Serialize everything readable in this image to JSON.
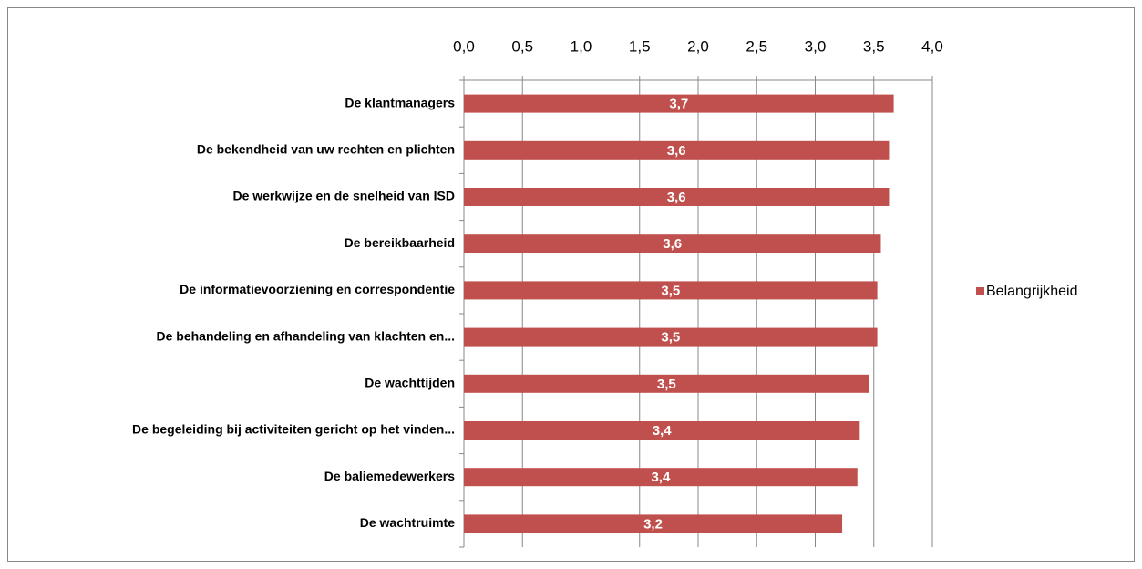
{
  "chart_data": {
    "type": "bar",
    "orientation": "horizontal",
    "categories": [
      "De klantmanagers",
      "De bekendheid van uw rechten en plichten",
      "De werkwijze en de snelheid van ISD",
      "De bereikbaarheid",
      "De informatievoorziening en correspondentie",
      "De behandeling en afhandeling van klachten en...",
      "De wachttijden",
      "De begeleiding bij activiteiten gericht op het vinden...",
      "De baliemedewerkers",
      "De wachtruimte"
    ],
    "series": [
      {
        "name": "Belangrijkheid",
        "color": "#c0504d",
        "values": [
          3.67,
          3.63,
          3.63,
          3.56,
          3.53,
          3.53,
          3.46,
          3.38,
          3.36,
          3.23
        ],
        "value_labels": [
          "3,7",
          "3,6",
          "3,6",
          "3,6",
          "3,5",
          "3,5",
          "3,5",
          "3,4",
          "3,4",
          "3,2"
        ]
      }
    ],
    "xlim": [
      0,
      4
    ],
    "xticks": [
      {
        "value": 0,
        "label": "0,0"
      },
      {
        "value": 0.5,
        "label": "0,5"
      },
      {
        "value": 1,
        "label": "1,0"
      },
      {
        "value": 1.5,
        "label": "1,5"
      },
      {
        "value": 2,
        "label": "2,0"
      },
      {
        "value": 2.5,
        "label": "2,5"
      },
      {
        "value": 3,
        "label": "3,0"
      },
      {
        "value": 3.5,
        "label": "3,5"
      },
      {
        "value": 4,
        "label": "4,0"
      }
    ],
    "grid": true,
    "legend": "right"
  }
}
